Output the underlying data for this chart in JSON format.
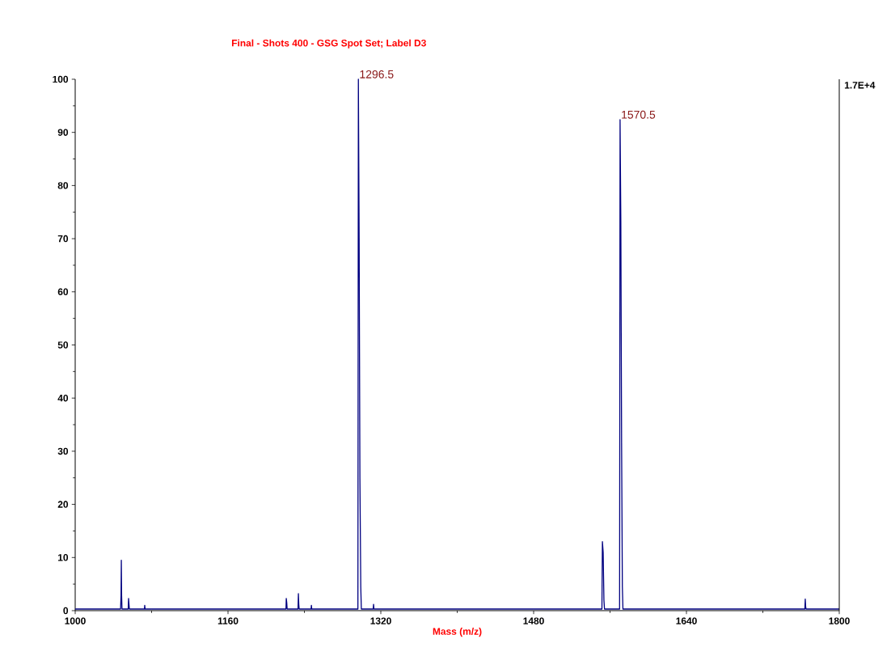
{
  "chart_data": {
    "type": "line",
    "title": "Final - Shots 400 - GSG Spot Set; Label D3",
    "xlabel": "Mass (m/z)",
    "x": [
      1000,
      1047.5,
      1048,
      1048.3,
      1048.6,
      1049,
      1055.5,
      1055.9,
      1056.3,
      1056.7,
      1072.5,
      1072.8,
      1073.2,
      1220.7,
      1221,
      1221.5,
      1221.9,
      1233.3,
      1233.7,
      1234.1,
      1234.5,
      1247,
      1247.3,
      1247.7,
      1296,
      1296.5,
      1297.3,
      1298.1,
      1299,
      1299.6,
      1312,
      1312.4,
      1312.8,
      1551.5,
      1552,
      1552.8,
      1553.6,
      1554.2,
      1570,
      1570.5,
      1571.3,
      1572.1,
      1572.9,
      1573.5,
      1764,
      1764.4,
      1764.8,
      1765.2,
      1800
    ],
    "series": [
      {
        "color": "#000080",
        "values": [
          0.3,
          0.3,
          2.8,
          9.5,
          2.8,
          0.3,
          0.3,
          2.3,
          1.2,
          0.3,
          0.3,
          1.0,
          0.3,
          0.3,
          2.3,
          1.5,
          0.3,
          0.3,
          3.2,
          1.2,
          0.3,
          0.3,
          1.0,
          0.3,
          0.3,
          100,
          70,
          25,
          4.5,
          0.3,
          0.3,
          1.2,
          0.3,
          0.3,
          13,
          11,
          2,
          0.3,
          0.3,
          92.4,
          73,
          31.5,
          4.5,
          0.3,
          0.3,
          2.2,
          0.8,
          0.3,
          0.3
        ]
      }
    ],
    "xlim": [
      1000,
      1800
    ],
    "xticks": [
      1000,
      1160,
      1320,
      1480,
      1640,
      1800
    ],
    "ylim": [
      0,
      100
    ],
    "yticks": [
      0,
      10,
      20,
      30,
      40,
      50,
      60,
      70,
      80,
      90,
      100
    ],
    "marker": "none",
    "annotations": [
      {
        "text": "1296.5",
        "x": 1296.5,
        "y": 100
      },
      {
        "text": "1570.5",
        "x": 1570.5,
        "y": 92.4
      },
      "1.7E+4"
    ]
  }
}
